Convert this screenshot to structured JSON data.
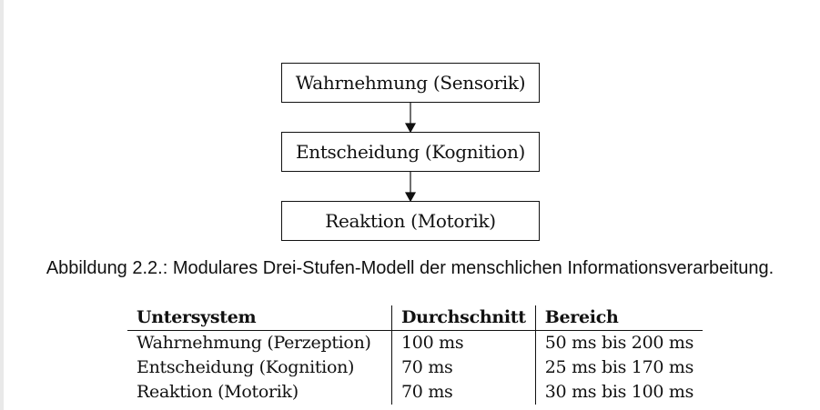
{
  "figure": {
    "steps": [
      {
        "label": "Wahrnehmung (Sensorik)"
      },
      {
        "label": "Entscheidung (Kognition)"
      },
      {
        "label": "Reaktion (Motorik)"
      }
    ],
    "caption": "Abbildung 2.2.: Modulares Drei-Stufen-Modell der menschlichen Informationsverarbeitung."
  },
  "table": {
    "headers": [
      "Untersystem",
      "Durchschnitt",
      "Bereich"
    ],
    "rows": [
      {
        "system": "Wahrnehmung (Perzeption)",
        "average": "100 ms",
        "range": "50 ms bis 200 ms"
      },
      {
        "system": "Entscheidung (Kognition)",
        "average": "70 ms",
        "range": "25 ms bis 170 ms"
      },
      {
        "system": "Reaktion (Motorik)",
        "average": "70 ms",
        "range": "30 ms bis 100 ms"
      }
    ]
  }
}
